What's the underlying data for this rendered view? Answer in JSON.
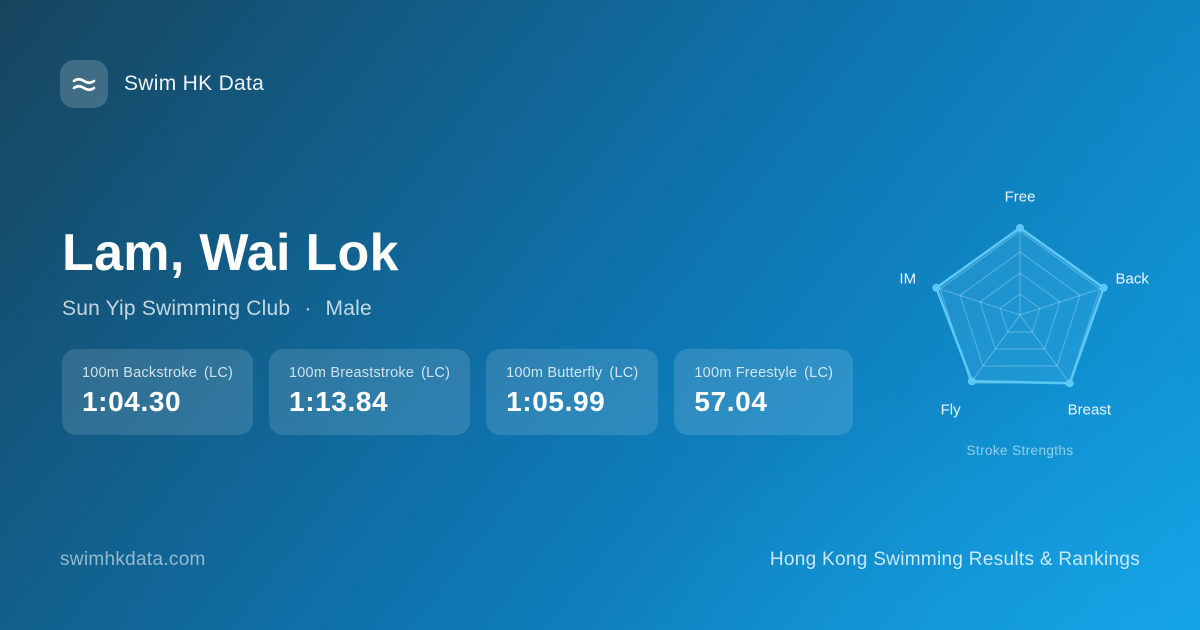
{
  "brand": {
    "name": "Swim HK Data",
    "logo_icon": "waves-icon"
  },
  "athlete": {
    "name": "Lam, Wai Lok",
    "club": "Sun Yip Swimming Club",
    "separator": "·",
    "gender": "Male"
  },
  "stats": [
    {
      "event": "100m Backstroke",
      "course": "(LC)",
      "time": "1:04.30"
    },
    {
      "event": "100m Breaststroke",
      "course": "(LC)",
      "time": "1:13.84"
    },
    {
      "event": "100m Butterfly",
      "course": "(LC)",
      "time": "1:05.99"
    },
    {
      "event": "100m Freestyle",
      "course": "(LC)",
      "time": "57.04"
    }
  ],
  "chart_data": {
    "type": "radar",
    "title": "Stroke Strengths",
    "categories": [
      "Free",
      "Back",
      "Breast",
      "Fly",
      "IM"
    ],
    "values": [
      99,
      100,
      96,
      93,
      100
    ],
    "max": 100,
    "rings": 4,
    "legend": false,
    "accent": "#5cc8f5",
    "fill": "rgba(92,200,245,0.20)",
    "grid_color": "rgba(255,255,255,0.32)"
  },
  "footer": {
    "left": "swimhkdata.com",
    "right": "Hong Kong Swimming Results & Rankings"
  },
  "colors": {
    "bg_start": "#17455e",
    "bg_mid": "#0e74af",
    "bg_end": "#11a1e4",
    "accent": "#5cc8f5",
    "card_bg": "rgba(255,255,255,0.13)"
  }
}
